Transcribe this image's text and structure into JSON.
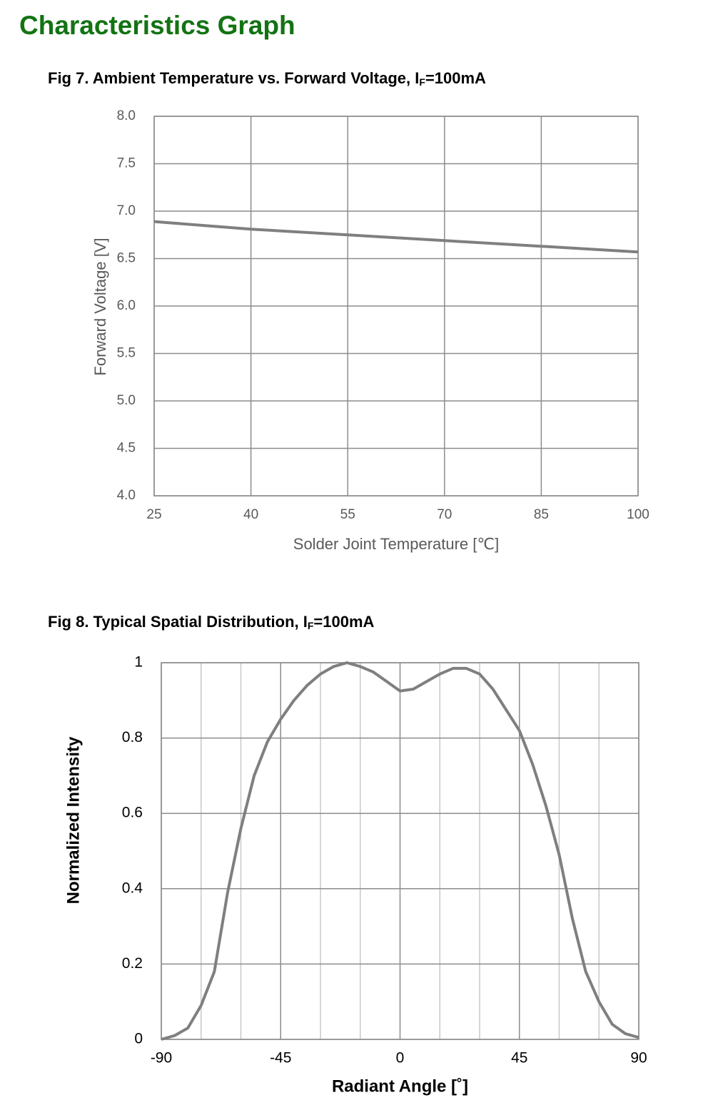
{
  "header": {
    "title": "Characteristics Graph"
  },
  "chart_data": [
    {
      "type": "line",
      "title": [
        "Fig 7. Ambient Temperature vs. Forward Voltage, I",
        "F",
        "=100mA"
      ],
      "x_label": "Solder Joint Temperature [℃]",
      "y_label": "Forward Voltage [V]",
      "x": [
        25,
        40,
        55,
        70,
        85,
        100
      ],
      "series": [
        {
          "name": "Forward Voltage",
          "color": "#7f7f7f",
          "values": [
            6.89,
            6.81,
            6.75,
            6.69,
            6.63,
            6.57
          ]
        }
      ],
      "xlim": [
        25,
        100
      ],
      "xticks": [
        25,
        40,
        55,
        70,
        85,
        100
      ],
      "ylim": [
        4,
        8
      ],
      "yticks": [
        {
          "value": 4,
          "label": "4.0"
        },
        4.5,
        {
          "value": 5,
          "label": "5.0"
        },
        5.5,
        {
          "value": 6,
          "label": "6.0"
        },
        6.5,
        {
          "value": 7,
          "label": "7.0"
        },
        7.5,
        {
          "value": 8,
          "label": "8.0"
        }
      ],
      "grid": true
    },
    {
      "type": "line",
      "title": [
        "Fig 8. Typical Spatial Distribution, I",
        "F",
        "=100mA"
      ],
      "x_label": "Radiant Angle [˚]",
      "y_label": "Normalized Intensity",
      "x": [
        -90,
        -85,
        -80,
        -75,
        -70,
        -65,
        -60,
        -55,
        -50,
        -45,
        -40,
        -35,
        -30,
        -25,
        -20,
        -15,
        -10,
        -5,
        0,
        5,
        10,
        15,
        20,
        25,
        30,
        35,
        40,
        45,
        50,
        55,
        60,
        65,
        70,
        75,
        80,
        85,
        90
      ],
      "series": [
        {
          "name": "Normalized Intensity",
          "color": "#7f7f7f",
          "values": [
            0,
            0.01,
            0.03,
            0.09,
            0.18,
            0.39,
            0.56,
            0.7,
            0.79,
            0.85,
            0.9,
            0.94,
            0.97,
            0.99,
            1,
            0.99,
            0.975,
            0.95,
            0.925,
            0.93,
            0.95,
            0.97,
            0.985,
            0.985,
            0.97,
            0.93,
            0.875,
            0.82,
            0.73,
            0.62,
            0.49,
            0.32,
            0.18,
            0.1,
            0.04,
            0.015,
            0.005
          ]
        }
      ],
      "xlim": [
        -90,
        90
      ],
      "xticks": [
        -90,
        -45,
        0,
        45,
        90
      ],
      "xminorticks": [
        -75,
        -60,
        -30,
        -15,
        15,
        30,
        60,
        75
      ],
      "ylim": [
        0,
        1
      ],
      "yticks": [
        0,
        0.2,
        0.4,
        0.6,
        0.8,
        1
      ],
      "grid": true
    }
  ]
}
